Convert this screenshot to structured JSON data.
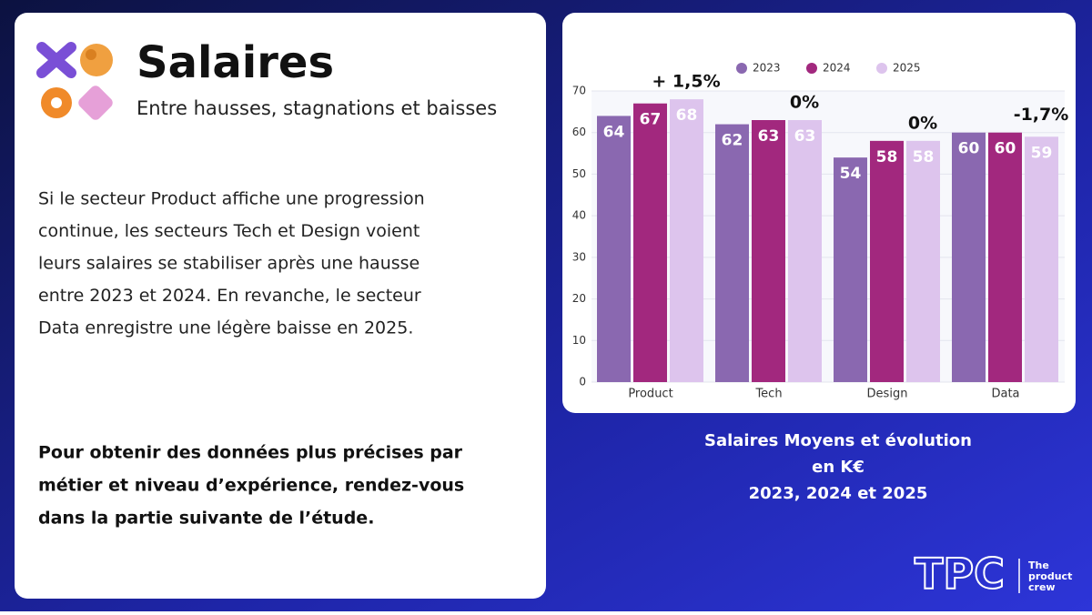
{
  "header": {
    "title": "Salaires",
    "subtitle": "Entre hausses, stagnations et baisses"
  },
  "body": {
    "paragraph": [
      "Si le secteur Product affiche une progression",
      "continue, les secteurs Tech et Design voient",
      "leurs salaires se stabiliser après une hausse",
      "entre 2023 et 2024. En revanche, le secteur",
      "Data enregistre une légère baisse en 2025."
    ],
    "callout": [
      "Pour obtenir des données plus précises par",
      "métier et niveau d’expérience, rendez-vous",
      "dans la partie suivante de l’étude."
    ]
  },
  "chart_data": {
    "type": "bar",
    "categories": [
      "Product",
      "Tech",
      "Design",
      "Data"
    ],
    "series": [
      {
        "name": "2023",
        "color": "#8a68b0",
        "values": [
          64,
          62,
          54,
          60
        ]
      },
      {
        "name": "2024",
        "color": "#a2287e",
        "values": [
          67,
          63,
          58,
          60
        ]
      },
      {
        "name": "2025",
        "color": "#ddc4ed",
        "values": [
          68,
          63,
          58,
          59
        ]
      }
    ],
    "annotations": [
      "+ 1,5%",
      "0%",
      "0%",
      "-1,7%"
    ],
    "ylim": [
      0,
      70
    ],
    "yticks": [
      0,
      10,
      20,
      30,
      40,
      50,
      60,
      70
    ],
    "grid": true,
    "legend": "top",
    "caption": [
      "Salaires Moyens et évolution",
      "en K€",
      "2023, 2024 et 2025"
    ]
  },
  "logo": {
    "mark": "TPC",
    "name": [
      "The",
      "product",
      "crew"
    ]
  }
}
